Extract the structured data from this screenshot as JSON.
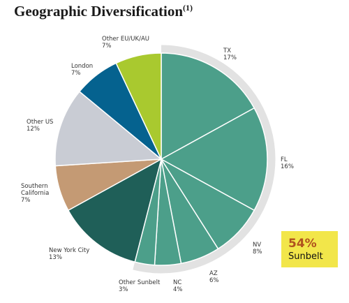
{
  "chart_data": {
    "type": "pie",
    "title": "Geographic Diversification",
    "title_note": "(1)",
    "categories": [
      "TX",
      "FL",
      "NV",
      "AZ",
      "NC",
      "Other Sunbelt",
      "New York City",
      "Southern California",
      "Other US",
      "London",
      "Other EU/UK/AU"
    ],
    "values": [
      17,
      16,
      8,
      6,
      4,
      3,
      13,
      7,
      12,
      7,
      7
    ],
    "value_labels": [
      "17%",
      "16%",
      "8%",
      "6%",
      "4%",
      "3%",
      "13%",
      "7%",
      "12%",
      "7%",
      "7%"
    ],
    "colors": [
      "#4c9f8a",
      "#4c9f8a",
      "#4c9f8a",
      "#4c9f8a",
      "#4c9f8a",
      "#4c9f8a",
      "#1f5f58",
      "#c49a74",
      "#c9ccd4",
      "#05628f",
      "#a9c92f"
    ],
    "callout": {
      "value": "54%",
      "label": "Sunbelt"
    }
  }
}
